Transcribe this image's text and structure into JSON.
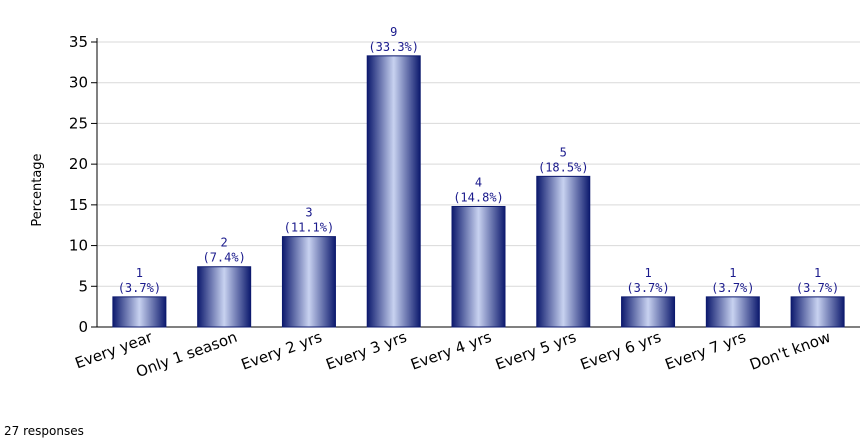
{
  "chart_data": {
    "type": "bar",
    "categories": [
      "Every year",
      "Only 1 season",
      "Every 2 yrs",
      "Every 3 yrs",
      "Every 4 yrs",
      "Every 5 yrs",
      "Every 6 yrs",
      "Every 7 yrs",
      "Don't know"
    ],
    "values": [
      3.7,
      7.4,
      11.1,
      33.3,
      14.8,
      18.5,
      3.7,
      3.7,
      3.7
    ],
    "counts": [
      "1",
      "2",
      "3",
      "9",
      "4",
      "5",
      "1",
      "1",
      "1"
    ],
    "percent_labels": [
      "(3.7%)",
      "(7.4%)",
      "(11.1%)",
      "(33.3%)",
      "(14.8%)",
      "(18.5%)",
      "(3.7%)",
      "(3.7%)",
      "(3.7%)"
    ],
    "ylabel": "Percentage",
    "ylim": [
      0,
      35
    ],
    "yticks": [
      0,
      5,
      10,
      15,
      20,
      25,
      30,
      35
    ],
    "grid": true,
    "colors": {
      "bar_dark": "#0d1a6e",
      "bar_light": "#c8d2f0",
      "label": "#1a1a8c",
      "grid": "#d9d9d9"
    }
  },
  "footnote": "27 responses"
}
